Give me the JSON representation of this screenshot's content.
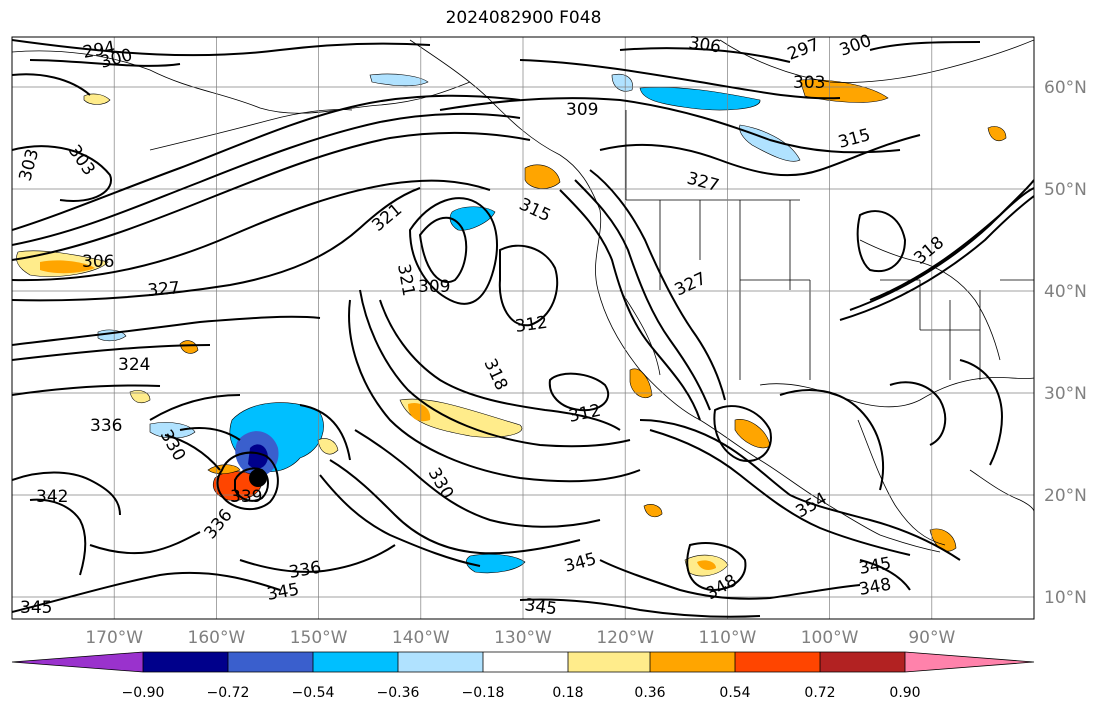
{
  "title": "2024082900 F048",
  "map": {
    "lat_labels": [
      "60°N",
      "50°N",
      "40°N",
      "30°N",
      "20°N",
      "10°N"
    ],
    "lon_labels": [
      "170°W",
      "160°W",
      "150°W",
      "140°W",
      "130°W",
      "120°W",
      "110°W",
      "100°W",
      "90°W"
    ],
    "contour_labels": [
      "294",
      "297",
      "300",
      "300",
      "303",
      "303",
      "303",
      "306",
      "306",
      "309",
      "309",
      "312",
      "312",
      "315",
      "315",
      "318",
      "318",
      "321",
      "321",
      "324",
      "327",
      "327",
      "327",
      "330",
      "330",
      "336",
      "336",
      "336",
      "339",
      "342",
      "345",
      "345",
      "345",
      "345",
      "345",
      "348",
      "348",
      "354"
    ]
  },
  "colorbar": {
    "colors": [
      "#9a32cd",
      "#00008b",
      "#3a5fcd",
      "#00bfff",
      "#b0e2ff",
      "#ffffff",
      "#ffec8b",
      "#ffa500",
      "#ff4500",
      "#b22222",
      "#ff82ab"
    ],
    "labels": [
      "−0.90",
      "−0.72",
      "−0.54",
      "−0.36",
      "−0.18",
      "0.18",
      "0.36",
      "0.54",
      "0.72",
      "0.90"
    ]
  }
}
